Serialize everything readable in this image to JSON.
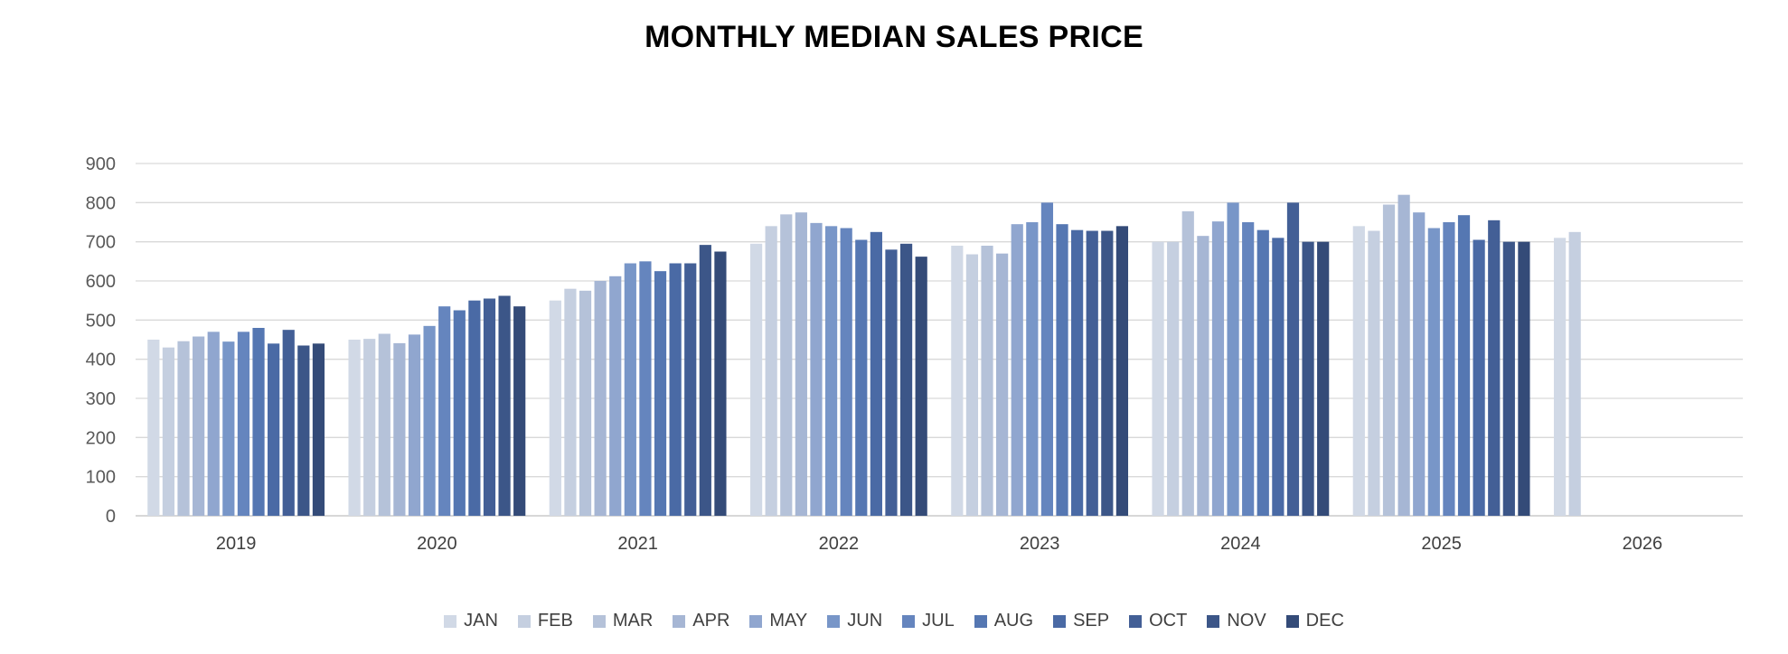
{
  "chart_data": {
    "type": "bar",
    "title": "MONTHLY MEDIAN SALES PRICE",
    "xlabel": "",
    "ylabel": "",
    "ylim": [
      0,
      900
    ],
    "yticks": [
      0,
      100,
      200,
      300,
      400,
      500,
      600,
      700,
      800,
      900
    ],
    "grid": true,
    "legend_position": "bottom",
    "categories": [
      "2019",
      "2020",
      "2021",
      "2022",
      "2023",
      "2024",
      "2025",
      "2026"
    ],
    "series": [
      {
        "name": "JAN",
        "color": "#D1D9E6",
        "values": [
          450,
          450,
          550,
          695,
          690,
          700,
          740,
          710
        ]
      },
      {
        "name": "FEB",
        "color": "#C5CFE0",
        "values": [
          430,
          452,
          580,
          740,
          668,
          700,
          728,
          725
        ]
      },
      {
        "name": "MAR",
        "color": "#B5C2D9",
        "values": [
          446,
          465,
          575,
          770,
          690,
          778,
          795,
          null
        ]
      },
      {
        "name": "APR",
        "color": "#A6B6D4",
        "values": [
          458,
          441,
          600,
          775,
          670,
          715,
          820,
          null
        ]
      },
      {
        "name": "MAY",
        "color": "#90A6CF",
        "values": [
          470,
          463,
          612,
          748,
          745,
          752,
          775,
          null
        ]
      },
      {
        "name": "JUN",
        "color": "#7896C8",
        "values": [
          445,
          485,
          645,
          740,
          750,
          800,
          735,
          null
        ]
      },
      {
        "name": "JUL",
        "color": "#6585BE",
        "values": [
          470,
          535,
          650,
          735,
          800,
          750,
          750,
          null
        ]
      },
      {
        "name": "AUG",
        "color": "#5577B2",
        "values": [
          480,
          525,
          625,
          705,
          745,
          730,
          768,
          null
        ]
      },
      {
        "name": "SEP",
        "color": "#4A6AA5",
        "values": [
          440,
          550,
          645,
          725,
          730,
          710,
          705,
          null
        ]
      },
      {
        "name": "OCT",
        "color": "#435F96",
        "values": [
          475,
          555,
          645,
          680,
          728,
          800,
          755,
          null
        ]
      },
      {
        "name": "NOV",
        "color": "#3C5688",
        "values": [
          435,
          562,
          692,
          695,
          728,
          700,
          700,
          null
        ]
      },
      {
        "name": "DEC",
        "color": "#344B78",
        "values": [
          440,
          535,
          675,
          662,
          740,
          700,
          700,
          null
        ]
      }
    ]
  }
}
